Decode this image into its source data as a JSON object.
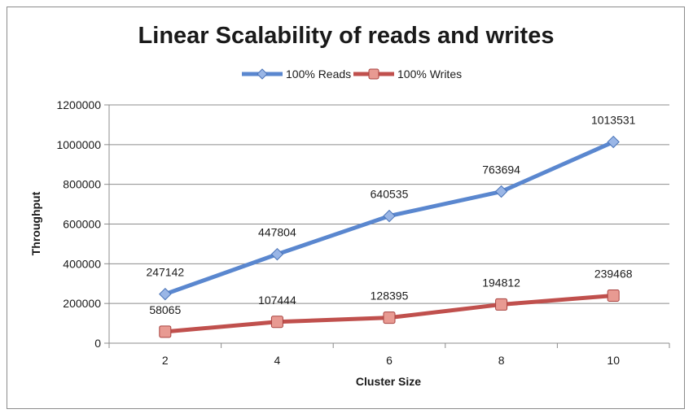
{
  "chart_data": {
    "type": "line",
    "title": "Linear Scalability of reads and writes",
    "xlabel": "Cluster Size",
    "ylabel": "Throughput",
    "categories": [
      "2",
      "4",
      "6",
      "8",
      "10"
    ],
    "ylim": [
      0,
      1200000
    ],
    "yticks": [
      "0",
      "200000",
      "400000",
      "600000",
      "800000",
      "1000000",
      "1200000"
    ],
    "grid": true,
    "legend_position": "top",
    "series": [
      {
        "name": "100% Reads",
        "values": [
          247142,
          447804,
          640535,
          763694,
          1013531
        ],
        "labels": [
          "247142",
          "447804",
          "640535",
          "763694",
          "1013531"
        ],
        "color": "#5a87cf",
        "marker": "diamond"
      },
      {
        "name": "100% Writes",
        "values": [
          58065,
          107444,
          128395,
          194812,
          239468
        ],
        "labels": [
          "58065",
          "107444",
          "128395",
          "194812",
          "239468"
        ],
        "color": "#c0504d",
        "marker": "square"
      }
    ]
  }
}
